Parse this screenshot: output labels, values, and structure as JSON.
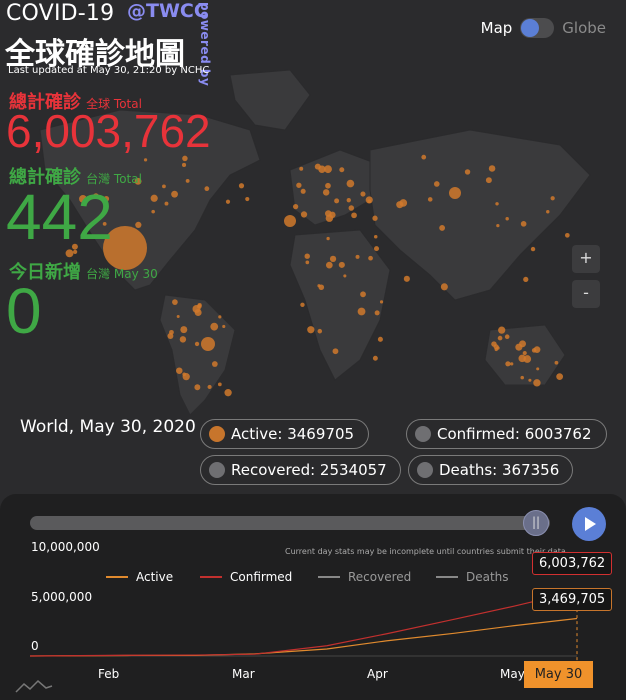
{
  "header": {
    "title_en": "COVID-19",
    "handle": "@TWCC",
    "powered": "powered by",
    "title_zh": "全球確診地圖",
    "updated": "Last updated at May 30, 21:20 by NCHC"
  },
  "stats": {
    "global": {
      "label": "總計確診",
      "sub": "全球 Total",
      "value": "6,003,762"
    },
    "taiwan": {
      "label": "總計確診",
      "sub": "台灣 Total",
      "value": "442"
    },
    "today": {
      "label": "今日新增",
      "sub": "台灣 May 30",
      "value": "0"
    }
  },
  "view_toggle": {
    "map": "Map",
    "globe": "Globe"
  },
  "zoom": {
    "in": "+",
    "out": "-"
  },
  "summary": {
    "location": "World, May 30, 2020",
    "active": "Active: 3469705",
    "confirmed": "Confirmed: 6003762",
    "recovered": "Recovered: 2534057",
    "deaths": "Deaths: 367356"
  },
  "timeline": {
    "disclaimer": "Current day stats may be incomplete until countries submit their data.",
    "thumb_icon": "pause-bars-icon",
    "play_icon": "play-icon",
    "current_date": "May 30"
  },
  "chart_data": {
    "type": "line",
    "y_ticks": [
      "10,000,000",
      "5,000,000",
      "0"
    ],
    "x_ticks": [
      "Feb",
      "Mar",
      "Apr",
      "May"
    ],
    "ylim": [
      0,
      10000000
    ],
    "legend": [
      "Active",
      "Confirmed",
      "Recovered",
      "Deaths"
    ],
    "series": [
      {
        "name": "Active",
        "color": "#e08a2e",
        "x": [
          "Jan 22",
          "Feb 15",
          "Mar 1",
          "Mar 15",
          "Apr 1",
          "Apr 15",
          "May 1",
          "May 15",
          "May 30"
        ],
        "values": [
          0,
          50000,
          60000,
          200000,
          650000,
          1400000,
          2100000,
          2800000,
          3469705
        ]
      },
      {
        "name": "Confirmed",
        "color": "#c2302e",
        "x": [
          "Jan 22",
          "Feb 15",
          "Mar 1",
          "Mar 15",
          "Apr 1",
          "Apr 15",
          "May 1",
          "May 15",
          "May 30"
        ],
        "values": [
          0,
          70000,
          88000,
          170000,
          950000,
          2050000,
          3400000,
          4600000,
          6003762
        ]
      }
    ],
    "tooltips": {
      "confirmed": "6,003,762",
      "active": "3,469,705"
    },
    "colors": {
      "active": "#c7752c",
      "confirmed": "#d23030",
      "other": "#888888"
    }
  }
}
